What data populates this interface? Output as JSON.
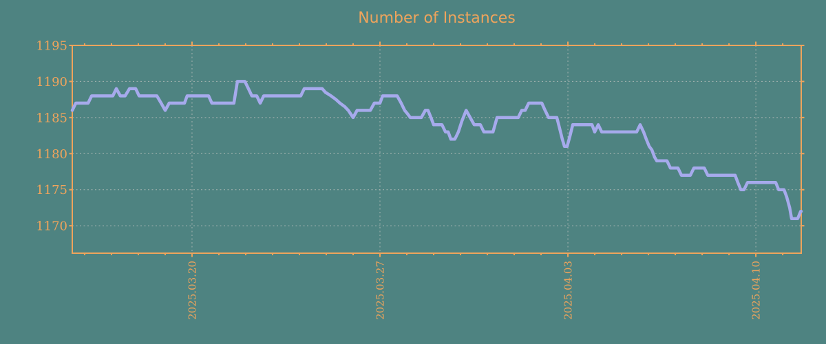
{
  "colors": {
    "background": "#4e8381",
    "axis_and_labels": "#efa45c",
    "series_line": "#a6aaec",
    "gridline": "#b6bdba"
  },
  "chart_data": {
    "type": "line",
    "title": "Number of Instances",
    "xlabel": "",
    "ylabel": "",
    "legend": "none",
    "x_axis": {
      "unit": "days relative to 2025.03.20",
      "range_days": [
        -4.46,
        22.69
      ],
      "major_ticks": [
        {
          "t": 0,
          "label": "2025.03.20"
        },
        {
          "t": 7,
          "label": "2025.03.27"
        },
        {
          "t": 14,
          "label": "2025.04.03"
        },
        {
          "t": 21,
          "label": "2025.04.10"
        }
      ],
      "minor_tick_interval_days": 1,
      "minor_tick_range": [
        -4,
        22
      ],
      "tick_label_rotation_deg": -90
    },
    "y_axis": {
      "range": [
        1166.2,
        1195
      ],
      "ticks": [
        1170,
        1175,
        1180,
        1185,
        1190,
        1195
      ]
    },
    "grid": {
      "style": "dotted",
      "x_at": [
        0,
        7,
        14,
        21
      ],
      "y_at": [
        1170,
        1175,
        1180,
        1185,
        1190
      ]
    },
    "series": [
      {
        "name": "instances",
        "points": [
          [
            -4.46,
            1186
          ],
          [
            -4.33,
            1187
          ],
          [
            -3.87,
            1187
          ],
          [
            -3.74,
            1188
          ],
          [
            -2.95,
            1188
          ],
          [
            -2.82,
            1189
          ],
          [
            -2.67,
            1188
          ],
          [
            -2.49,
            1188
          ],
          [
            -2.33,
            1189
          ],
          [
            -2.1,
            1189
          ],
          [
            -1.97,
            1188
          ],
          [
            -1.31,
            1188
          ],
          [
            -1.15,
            1187
          ],
          [
            -1.0,
            1186
          ],
          [
            -0.85,
            1187
          ],
          [
            -0.28,
            1187
          ],
          [
            -0.18,
            1188
          ],
          [
            0.62,
            1188
          ],
          [
            0.74,
            1187
          ],
          [
            1.56,
            1187
          ],
          [
            1.69,
            1190
          ],
          [
            1.97,
            1190
          ],
          [
            2.1,
            1189
          ],
          [
            2.23,
            1188
          ],
          [
            2.41,
            1188
          ],
          [
            2.54,
            1187
          ],
          [
            2.67,
            1188
          ],
          [
            4.05,
            1188
          ],
          [
            4.18,
            1189
          ],
          [
            4.85,
            1189
          ],
          [
            4.97,
            1188.5
          ],
          [
            5.18,
            1188
          ],
          [
            5.36,
            1187.5
          ],
          [
            5.51,
            1187
          ],
          [
            5.69,
            1186.5
          ],
          [
            5.82,
            1186
          ],
          [
            6.0,
            1185
          ],
          [
            6.15,
            1186
          ],
          [
            6.64,
            1186
          ],
          [
            6.79,
            1187
          ],
          [
            7.0,
            1187
          ],
          [
            7.1,
            1188
          ],
          [
            7.64,
            1188
          ],
          [
            7.79,
            1187
          ],
          [
            7.92,
            1186
          ],
          [
            8.03,
            1185.5
          ],
          [
            8.13,
            1185
          ],
          [
            8.54,
            1185
          ],
          [
            8.69,
            1186
          ],
          [
            8.79,
            1186
          ],
          [
            8.9,
            1185
          ],
          [
            9.0,
            1184
          ],
          [
            9.31,
            1184
          ],
          [
            9.44,
            1183
          ],
          [
            9.54,
            1183
          ],
          [
            9.64,
            1182
          ],
          [
            9.79,
            1182
          ],
          [
            9.92,
            1183
          ],
          [
            10.05,
            1184.5
          ],
          [
            10.21,
            1186
          ],
          [
            10.36,
            1185
          ],
          [
            10.51,
            1184
          ],
          [
            10.74,
            1184
          ],
          [
            10.87,
            1183
          ],
          [
            11.21,
            1183
          ],
          [
            11.36,
            1185
          ],
          [
            12.15,
            1185
          ],
          [
            12.28,
            1186
          ],
          [
            12.41,
            1186
          ],
          [
            12.54,
            1187
          ],
          [
            13.03,
            1187
          ],
          [
            13.15,
            1186
          ],
          [
            13.28,
            1185
          ],
          [
            13.59,
            1185
          ],
          [
            13.69,
            1183.5
          ],
          [
            13.79,
            1182
          ],
          [
            13.87,
            1181
          ],
          [
            13.97,
            1181
          ],
          [
            14.08,
            1182.5
          ],
          [
            14.18,
            1184
          ],
          [
            14.9,
            1184
          ],
          [
            15.0,
            1183
          ],
          [
            15.13,
            1184
          ],
          [
            15.26,
            1183
          ],
          [
            16.56,
            1183
          ],
          [
            16.69,
            1184
          ],
          [
            16.82,
            1183
          ],
          [
            16.92,
            1182
          ],
          [
            17.03,
            1181
          ],
          [
            17.13,
            1180.5
          ],
          [
            17.23,
            1179.5
          ],
          [
            17.31,
            1179
          ],
          [
            17.69,
            1179
          ],
          [
            17.82,
            1178
          ],
          [
            18.1,
            1178
          ],
          [
            18.23,
            1177
          ],
          [
            18.56,
            1177
          ],
          [
            18.69,
            1178
          ],
          [
            19.08,
            1178
          ],
          [
            19.21,
            1177
          ],
          [
            20.23,
            1177
          ],
          [
            20.33,
            1176
          ],
          [
            20.44,
            1175
          ],
          [
            20.56,
            1175
          ],
          [
            20.69,
            1176
          ],
          [
            21.74,
            1176
          ],
          [
            21.85,
            1175
          ],
          [
            22.05,
            1175
          ],
          [
            22.15,
            1174
          ],
          [
            22.26,
            1172.5
          ],
          [
            22.33,
            1171
          ],
          [
            22.56,
            1171
          ],
          [
            22.67,
            1172
          ],
          [
            22.69,
            1172
          ]
        ]
      }
    ]
  }
}
